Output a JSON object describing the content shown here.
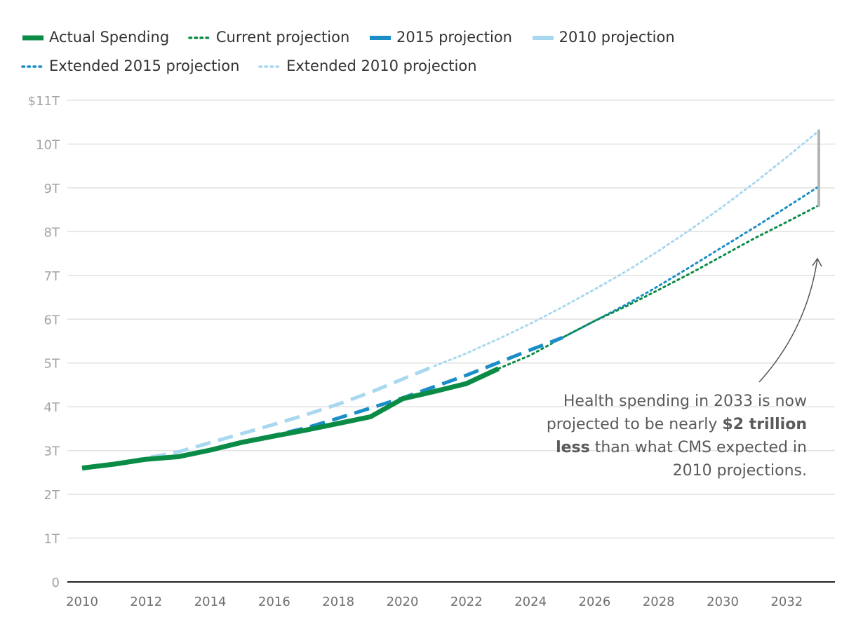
{
  "chart_data": {
    "type": "line",
    "title": "",
    "xlabel": "",
    "ylabel": "",
    "xlim": [
      2010,
      2033
    ],
    "ylim": [
      0,
      11
    ],
    "grid": true,
    "legend_position": "top-left",
    "x_ticks": [
      2010,
      2012,
      2014,
      2016,
      2018,
      2020,
      2022,
      2024,
      2026,
      2028,
      2030,
      2032
    ],
    "x_tick_labels": [
      "2010",
      "2012",
      "2014",
      "2016",
      "2018",
      "2020",
      "2022",
      "2024",
      "2026",
      "2028",
      "2030",
      "2032"
    ],
    "y_ticks": [
      0,
      1,
      2,
      3,
      4,
      5,
      6,
      7,
      8,
      9,
      10,
      11
    ],
    "y_tick_labels": [
      "0",
      "1T",
      "2T",
      "3T",
      "4T",
      "5T",
      "6T",
      "7T",
      "8T",
      "9T",
      "10T",
      "$11T"
    ],
    "series": [
      {
        "name": "Extended 2010 projection",
        "color": "#a8d8f0",
        "style": "dotted",
        "x": [
          2021,
          2022,
          2023,
          2024,
          2025,
          2026,
          2027,
          2028,
          2029,
          2030,
          2031,
          2032,
          2033
        ],
        "values": [
          4.93,
          5.22,
          5.55,
          5.9,
          6.28,
          6.68,
          7.1,
          7.56,
          8.05,
          8.57,
          9.12,
          9.7,
          10.3
        ]
      },
      {
        "name": "Extended 2015 projection",
        "color": "#1b8dc7",
        "style": "dotted",
        "x": [
          2025,
          2026,
          2027,
          2028,
          2029,
          2030,
          2031,
          2032,
          2033
        ],
        "values": [
          5.58,
          5.96,
          6.34,
          6.76,
          7.2,
          7.65,
          8.1,
          8.56,
          9.03
        ]
      },
      {
        "name": "Current projection",
        "color": "#0a8c46",
        "style": "dotted",
        "x": [
          2023,
          2024,
          2025,
          2026,
          2027,
          2028,
          2029,
          2030,
          2031,
          2032,
          2033
        ],
        "values": [
          4.87,
          5.18,
          5.58,
          5.96,
          6.3,
          6.67,
          7.05,
          7.45,
          7.85,
          8.22,
          8.6
        ]
      },
      {
        "name": "2010 projection",
        "color": "#a8d8f0",
        "style": "dashed",
        "x": [
          2010,
          2011,
          2012,
          2013,
          2014,
          2015,
          2016,
          2017,
          2018,
          2019,
          2020,
          2021
        ],
        "values": [
          2.6,
          2.7,
          2.83,
          2.97,
          3.18,
          3.39,
          3.6,
          3.82,
          4.06,
          4.33,
          4.63,
          4.93
        ]
      },
      {
        "name": "2015 projection",
        "color": "#1b8dc7",
        "style": "dashed",
        "x": [
          2015,
          2016,
          2017,
          2018,
          2019,
          2020,
          2021,
          2022,
          2023,
          2024,
          2025
        ],
        "values": [
          3.2,
          3.35,
          3.52,
          3.74,
          3.97,
          4.2,
          4.46,
          4.72,
          5.01,
          5.3,
          5.58
        ]
      },
      {
        "name": "Actual Spending",
        "color": "#0a8c46",
        "style": "solid",
        "x": [
          2010,
          2011,
          2012,
          2013,
          2014,
          2015,
          2016,
          2017,
          2018,
          2019,
          2020,
          2021,
          2022,
          2023
        ],
        "values": [
          2.6,
          2.69,
          2.8,
          2.86,
          3.01,
          3.19,
          3.33,
          3.47,
          3.62,
          3.77,
          4.18,
          4.35,
          4.53,
          4.87
        ]
      }
    ],
    "annotation": {
      "text_before": "Health spending in 2033 is now projected to be nearly ",
      "text_bold": "$2 trillion less",
      "text_after": " than what CMS expected in 2010 projections.",
      "gap_year": 2033,
      "gap_from": 8.6,
      "gap_to": 10.3,
      "arrow_target_value": 7.35,
      "gap_color": "#b5b5b5"
    }
  },
  "legend": [
    {
      "label": "Actual Spending",
      "color": "#0a8c46",
      "style": "solid"
    },
    {
      "label": "Current projection",
      "color": "#0a8c46",
      "style": "dotted"
    },
    {
      "label": "2015 projection",
      "color": "#1b8dc7",
      "style": "dashed"
    },
    {
      "label": "2010 projection",
      "color": "#a8d8f0",
      "style": "dashed"
    },
    {
      "label": "Extended 2015 projection",
      "color": "#1b8dc7",
      "style": "dotted"
    },
    {
      "label": "Extended 2010 projection",
      "color": "#a8d8f0",
      "style": "dotted"
    }
  ]
}
